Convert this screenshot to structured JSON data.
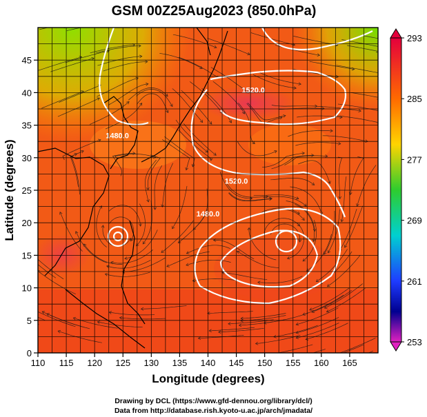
{
  "title": "GSM 00Z25Aug2023 (850.0hPa)",
  "axes": {
    "xlabel": "Longitude (degrees)",
    "ylabel": "Latitude  (degrees)",
    "xlim": [
      110,
      170
    ],
    "ylim": [
      0,
      50
    ],
    "xticks": [
      "110",
      "115",
      "120",
      "125",
      "130",
      "135",
      "140",
      "145",
      "150",
      "155",
      "160",
      "165"
    ],
    "yticks": [
      "0",
      "5",
      "10",
      "15",
      "20",
      "25",
      "30",
      "35",
      "40",
      "45"
    ]
  },
  "colorbar": {
    "min": 253,
    "max": 293,
    "labels": [
      "293",
      "285",
      "277",
      "269",
      "261",
      "253"
    ],
    "colors": [
      "#e4003c",
      "#ff6a00",
      "#ffd400",
      "#2ecc2e",
      "#00d0d0",
      "#1e3cff",
      "#000090",
      "#e020c0"
    ]
  },
  "contour_labels": [
    {
      "text": "1520.0",
      "lon": 148,
      "lat": 40
    },
    {
      "text": "1480.0",
      "lon": 124,
      "lat": 33
    },
    {
      "text": "1520.0",
      "lon": 145,
      "lat": 26
    },
    {
      "text": "1480.0",
      "lon": 140,
      "lat": 21
    }
  ],
  "footer": {
    "line1": "Drawing by DCL (https://www.gfd-dennou.org/library/dcl/)",
    "line2": "Data from http://database.rish.kyoto-u.ac.jp/arch/jmadata/"
  }
}
